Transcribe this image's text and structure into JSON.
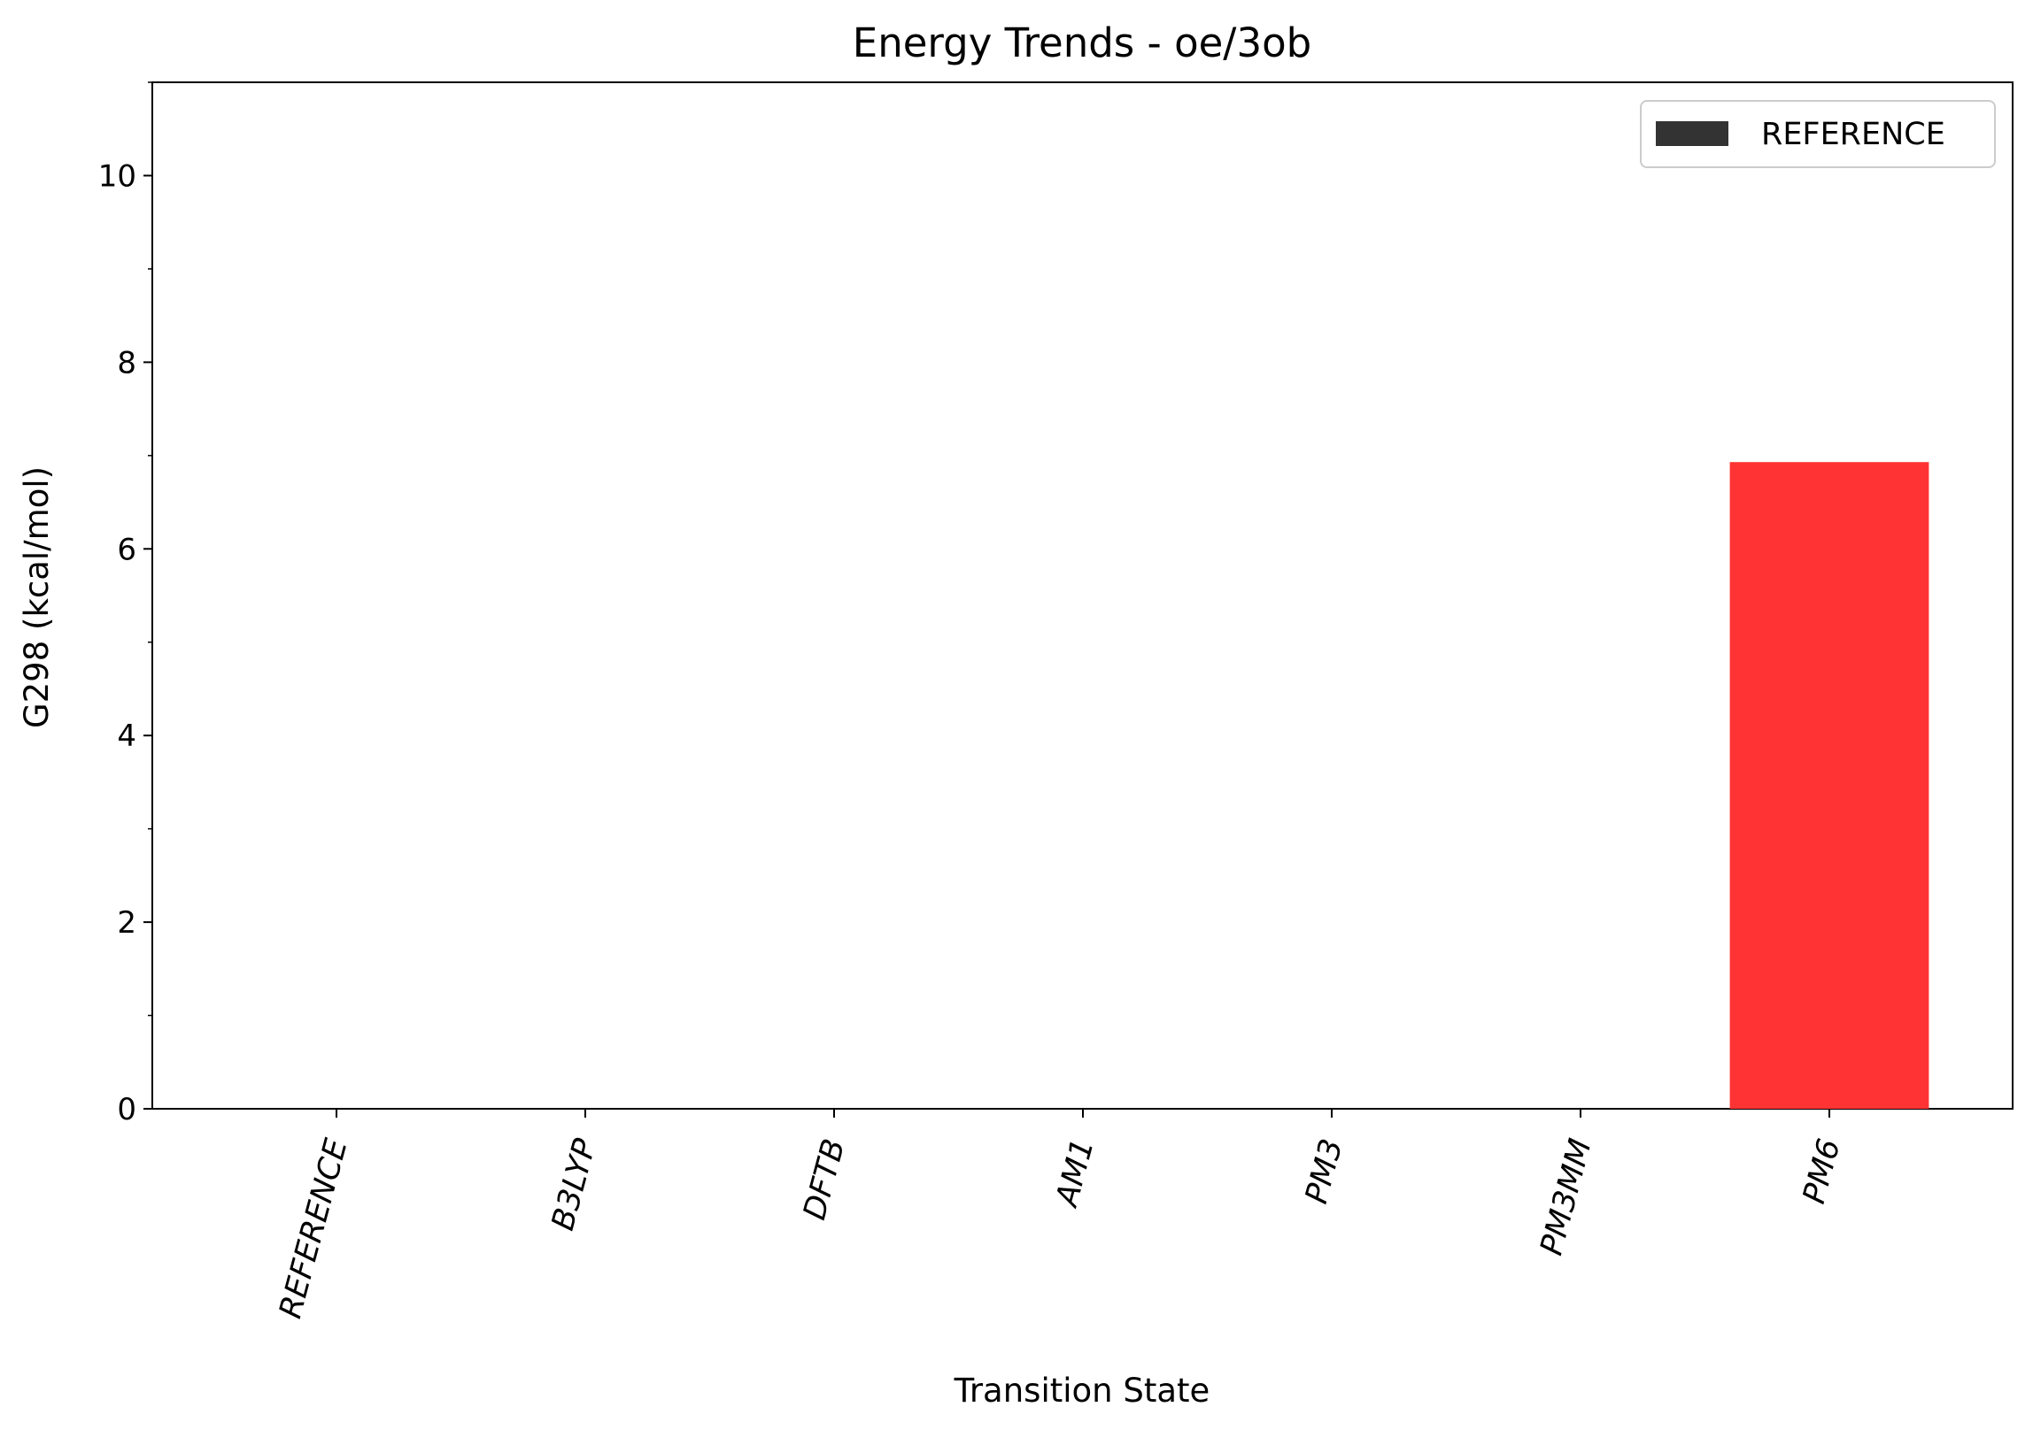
{
  "chart_data": {
    "type": "bar",
    "title": "Energy Trends - oe/3ob",
    "xlabel": "Transition State",
    "ylabel": "G298 (kcal/mol)",
    "categories": [
      "REFERENCE",
      "B3LYP",
      "DFTB",
      "AM1",
      "PM3",
      "PM3MM",
      "PM6"
    ],
    "series": [
      {
        "name": "REFERENCE",
        "values": [
          0,
          0,
          0,
          0,
          0,
          0,
          6.93
        ],
        "colors": [
          "#333333",
          "#333333",
          "#333333",
          "#333333",
          "#333333",
          "#333333",
          "#ff3333"
        ]
      }
    ],
    "ylim": [
      0,
      11
    ],
    "yticks": [
      0,
      2,
      4,
      6,
      8,
      10
    ],
    "grid": false,
    "legend": {
      "position": "top-right",
      "entries": [
        {
          "label": "REFERENCE",
          "color": "#333333"
        }
      ]
    }
  }
}
